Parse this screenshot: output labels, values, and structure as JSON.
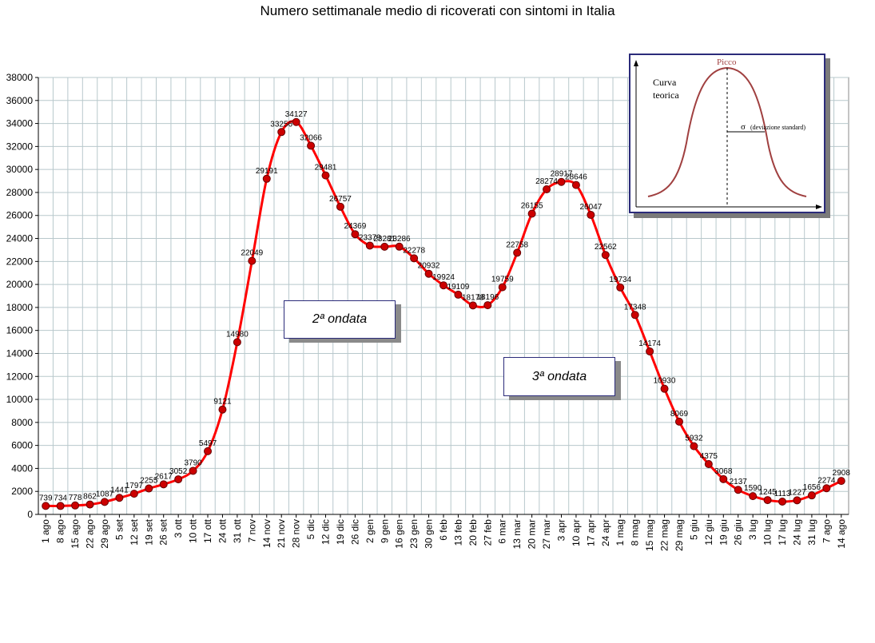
{
  "title": "Numero settimanale medio di ricoverati con sintomi in Italia",
  "chart_data": {
    "type": "line",
    "title": "Numero settimanale medio di ricoverati con sintomi in Italia",
    "xlabel": "",
    "ylabel": "",
    "ylim": [
      0,
      38000
    ],
    "yticks": [
      0,
      2000,
      4000,
      6000,
      8000,
      10000,
      12000,
      14000,
      16000,
      18000,
      20000,
      22000,
      24000,
      26000,
      28000,
      30000,
      32000,
      34000,
      36000,
      38000
    ],
    "grid": true,
    "line_color": "#ff0000",
    "marker_color": "#cc0000",
    "categories": [
      "1 ago",
      "8 ago",
      "15 ago",
      "22 ago",
      "29 ago",
      "5 set",
      "12 set",
      "19 set",
      "26 set",
      "3 ott",
      "10 ott",
      "17 ott",
      "24 ott",
      "31 ott",
      "7 nov",
      "14 nov",
      "21 nov",
      "28 nov",
      "5 dic",
      "12 dic",
      "19 dic",
      "26 dic",
      "2 gen",
      "9 gen",
      "16 gen",
      "23 gen",
      "30 gen",
      "6 feb",
      "13 feb",
      "20 feb",
      "27 feb",
      "6 mar",
      "13 mar",
      "20 mar",
      "27 mar",
      "3 apr",
      "10 apr",
      "17 apr",
      "24 apr",
      "1 mag",
      "8 mag",
      "15 mag",
      "22 mag",
      "29 mag",
      "5 giu",
      "12 giu",
      "19 giu",
      "26 giu",
      "3 lug",
      "10 lug",
      "17 lug",
      "24 lug",
      "31 lug",
      "7 ago",
      "14 ago"
    ],
    "values": [
      739,
      734,
      778,
      862,
      1087,
      1441,
      1797,
      2255,
      2617,
      3052,
      3790,
      5497,
      9121,
      14980,
      22049,
      29191,
      33256,
      34127,
      32066,
      29481,
      26757,
      24369,
      23379,
      23281,
      23286,
      22278,
      20932,
      19924,
      19109,
      18178,
      18196,
      19759,
      22758,
      26155,
      28274,
      28917,
      28646,
      26047,
      22562,
      19734,
      17348,
      14174,
      10930,
      8069,
      5932,
      4375,
      3068,
      2137,
      1590,
      1245,
      1113,
      1227,
      1656,
      2274,
      2908
    ]
  },
  "annotations": {
    "wave2": "2ª ondata",
    "wave3": "3ª ondata"
  },
  "inset": {
    "peak_label": "Picco",
    "curve_label_line1": "Curva",
    "curve_label_line2": "teorica",
    "sigma_label": "σ",
    "sigma_note": "(deviazione standard)"
  }
}
